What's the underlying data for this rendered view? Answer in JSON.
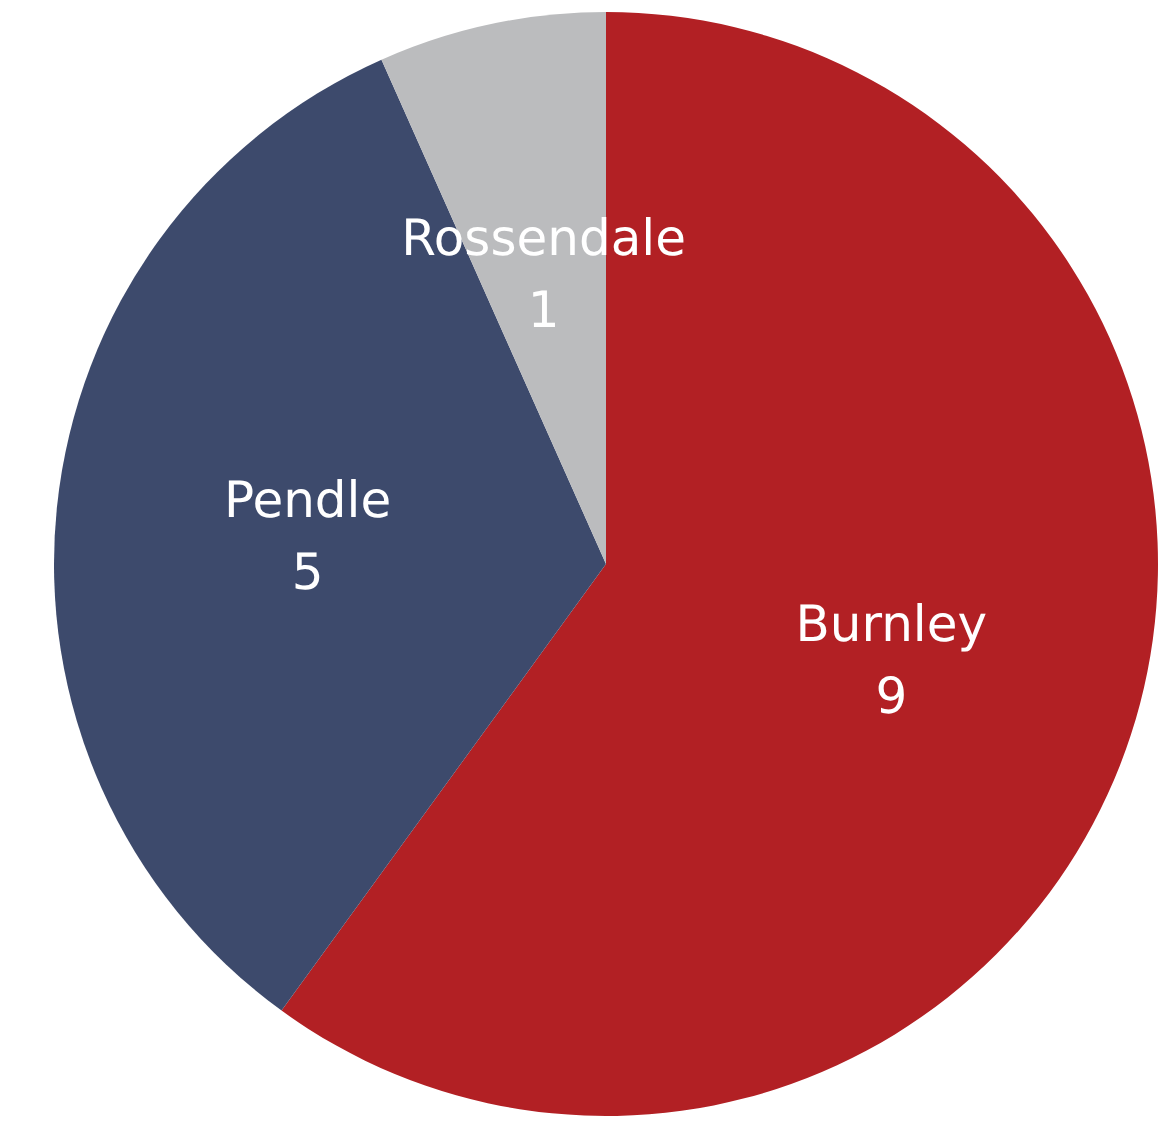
{
  "chart_data": {
    "type": "pie",
    "categories": [
      "Burnley",
      "Pendle",
      "Rossendale"
    ],
    "values": [
      9,
      5,
      1
    ],
    "colors": [
      "#b22024",
      "#3d4a6c",
      "#bbbcbe"
    ],
    "data_labels": true
  }
}
